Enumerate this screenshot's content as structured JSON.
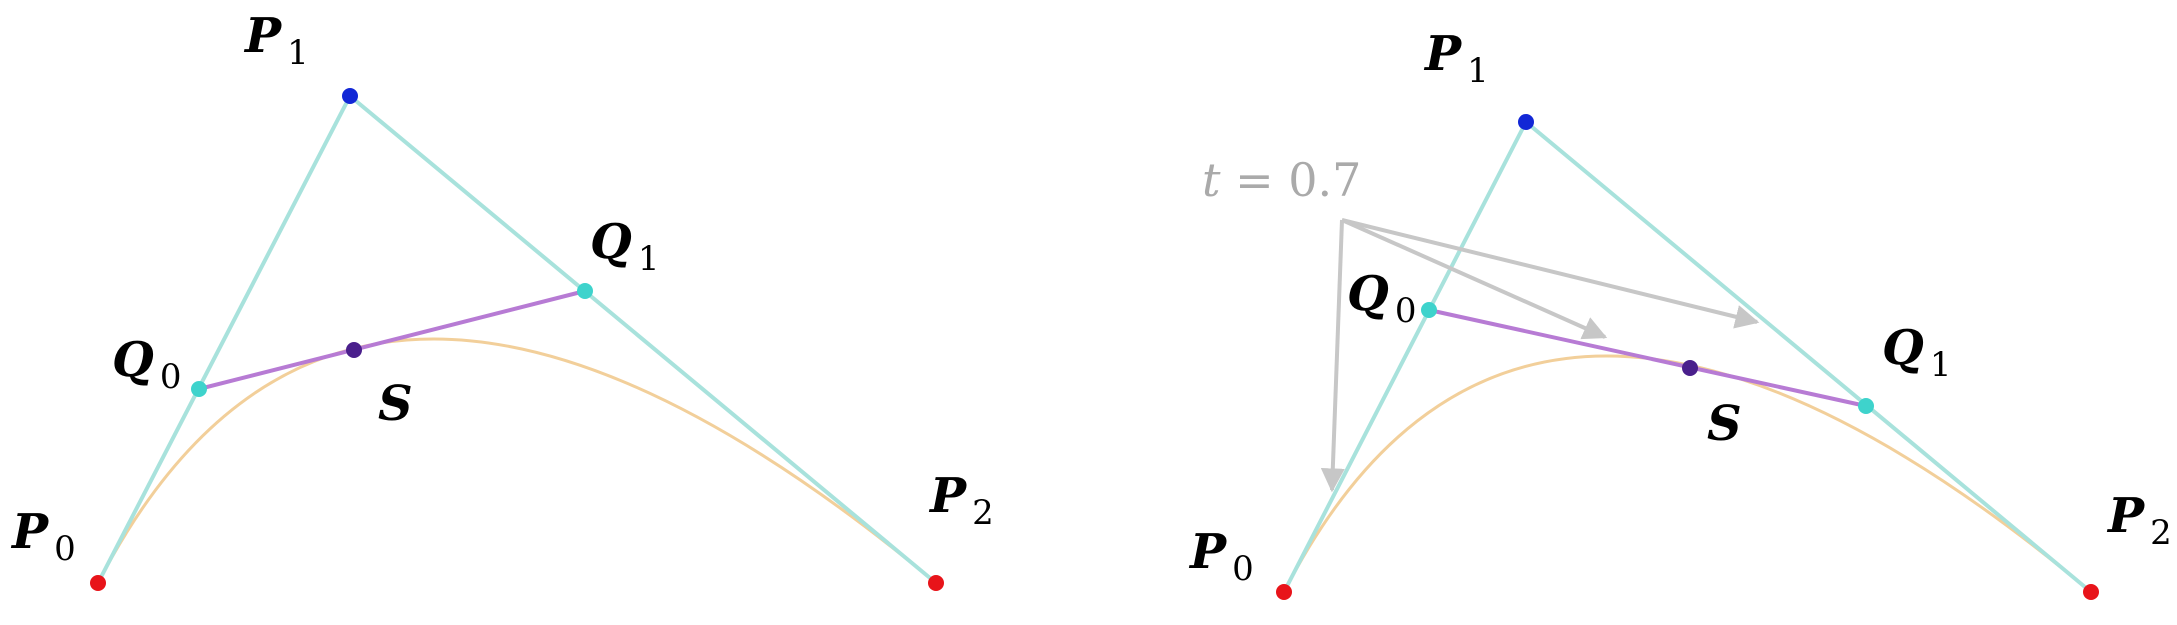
{
  "colors": {
    "control_line": "#a8e2dc",
    "sub_line": "#b77bd4",
    "curve": "#f2cf9a",
    "endpoint": "#e8141a",
    "control_point": "#1227d6",
    "q_point": "#3ed3cc",
    "s_point": "#4a1f8c",
    "arrow": "#c7c7c7",
    "t_label": "#aaaaaa"
  },
  "left_diagram": {
    "labels": {
      "p0": {
        "main": "P",
        "sub": "0"
      },
      "p1": {
        "main": "P",
        "sub": "1"
      },
      "p2": {
        "main": "P",
        "sub": "2"
      },
      "q0": {
        "main": "Q",
        "sub": "0"
      },
      "q1": {
        "main": "Q",
        "sub": "1"
      },
      "s": {
        "main": "S"
      }
    }
  },
  "right_diagram": {
    "t_label": {
      "var": "t",
      "eq": " = 0.7"
    },
    "labels": {
      "p0": {
        "main": "P",
        "sub": "0"
      },
      "p1": {
        "main": "P",
        "sub": "1"
      },
      "p2": {
        "main": "P",
        "sub": "2"
      },
      "q0": {
        "main": "Q",
        "sub": "0"
      },
      "q1": {
        "main": "Q",
        "sub": "1"
      },
      "s": {
        "main": "S"
      }
    }
  }
}
